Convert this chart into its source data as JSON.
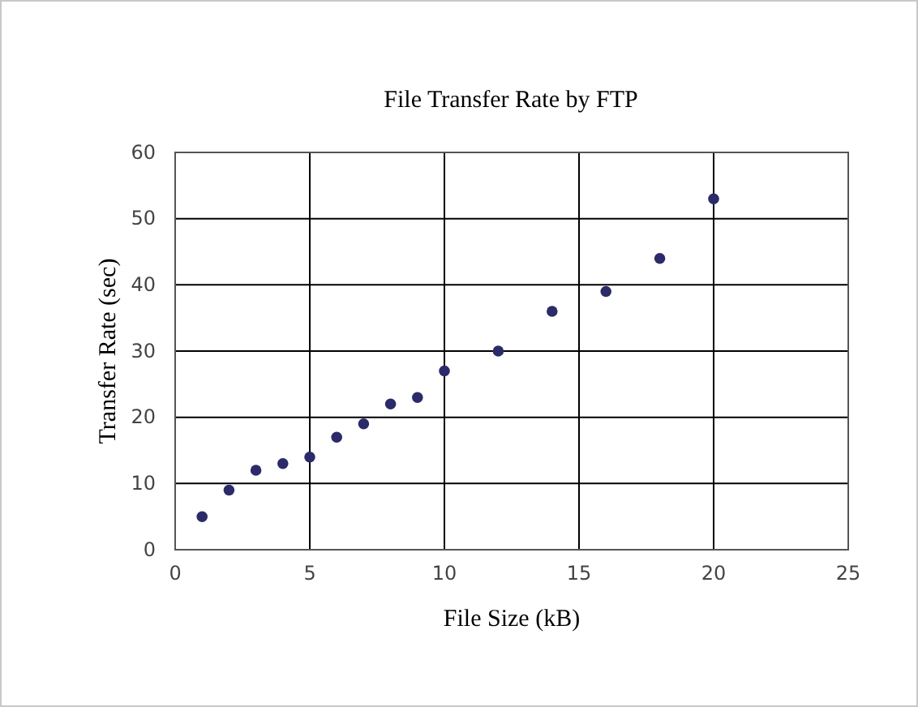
{
  "chart_data": {
    "type": "scatter",
    "title": "File Transfer Rate by FTP",
    "xlabel": "File Size (kB)",
    "ylabel": "Transfer Rate (sec)",
    "x": [
      1,
      2,
      3,
      4,
      5,
      6,
      7,
      8,
      9,
      10,
      12,
      14,
      16,
      18,
      20
    ],
    "series": [
      {
        "color": "#2b2a6a",
        "values": [
          5,
          9,
          12,
          13,
          14,
          17,
          19,
          22,
          23,
          27,
          30,
          36,
          39,
          44,
          53
        ]
      }
    ],
    "xlim": [
      0,
      25
    ],
    "xticks": [
      0,
      5,
      10,
      15,
      20,
      25
    ],
    "ylim": [
      0,
      60
    ],
    "yticks": [
      0,
      10,
      20,
      30,
      40,
      50,
      60
    ],
    "grid": true,
    "marker": "circle"
  }
}
